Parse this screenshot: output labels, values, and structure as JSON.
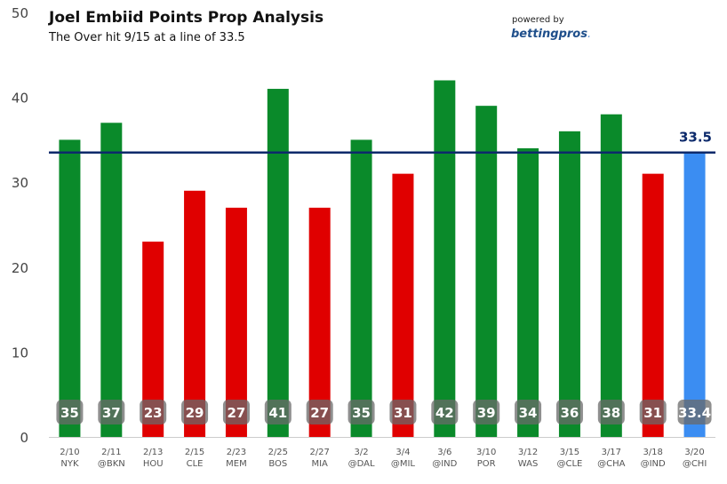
{
  "chart_data": {
    "type": "bar",
    "title": "Joel Embiid Points Prop Analysis",
    "subtitle": "The Over hit 9/15 at a line of 33.5",
    "powered_by": "powered by",
    "brand": "bettingpros",
    "brand_suffix": ".",
    "line_value": 33.5,
    "line_label": "33.5",
    "ylim": [
      0,
      50
    ],
    "yticks": [
      0,
      10,
      20,
      30,
      40,
      50
    ],
    "categories": [
      {
        "date": "2/10",
        "opp": "NYK"
      },
      {
        "date": "2/11",
        "opp": "@BKN"
      },
      {
        "date": "2/13",
        "opp": "HOU"
      },
      {
        "date": "2/15",
        "opp": "CLE"
      },
      {
        "date": "2/23",
        "opp": "MEM"
      },
      {
        "date": "2/25",
        "opp": "BOS"
      },
      {
        "date": "2/27",
        "opp": "MIA"
      },
      {
        "date": "3/2",
        "opp": "@DAL"
      },
      {
        "date": "3/4",
        "opp": "@MIL"
      },
      {
        "date": "3/6",
        "opp": "@IND"
      },
      {
        "date": "3/10",
        "opp": "POR"
      },
      {
        "date": "3/12",
        "opp": "WAS"
      },
      {
        "date": "3/15",
        "opp": "@CLE"
      },
      {
        "date": "3/17",
        "opp": "@CHA"
      },
      {
        "date": "3/18",
        "opp": "@IND"
      },
      {
        "date": "3/20",
        "opp": "@CHI"
      }
    ],
    "values": [
      35,
      37,
      23,
      29,
      27,
      41,
      27,
      35,
      31,
      42,
      39,
      34,
      36,
      38,
      31,
      33.4
    ],
    "labels": [
      "35",
      "37",
      "23",
      "29",
      "27",
      "41",
      "27",
      "35",
      "31",
      "42",
      "39",
      "34",
      "36",
      "38",
      "31",
      "33.4"
    ],
    "status": [
      "over",
      "over",
      "under",
      "under",
      "under",
      "over",
      "under",
      "over",
      "under",
      "over",
      "over",
      "over",
      "over",
      "over",
      "under",
      "projection"
    ],
    "colors": {
      "over": "#0a8a2a",
      "under": "#e00000",
      "projection": "#3b8df2",
      "line": "#0d2a6b",
      "label_bg": "#6a6a6a",
      "axis_text": "#555555"
    }
  }
}
